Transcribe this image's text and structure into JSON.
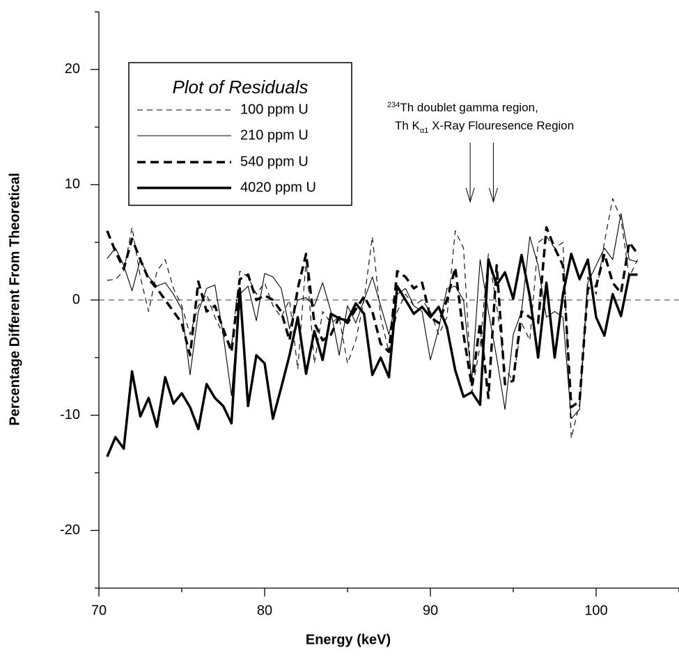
{
  "chart_data": {
    "type": "line",
    "ylabel": "Percentage Different From Theoretical",
    "xlabel": "Energy (keV)",
    "legend_title": "Plot of Residuals",
    "annotation": {
      "sup": "234",
      "line1": "Th doublet gamma region,",
      "line2a": "Th K",
      "sub": "α1",
      "line2b": " X-Ray Flouresence Region",
      "arrow_x": [
        92.4,
        93.8
      ]
    },
    "xlim": [
      70,
      105
    ],
    "ylim": [
      -25,
      25
    ],
    "xticks": [
      70,
      80,
      90,
      100
    ],
    "xminorticks": [
      75,
      85,
      95,
      105
    ],
    "yticks": [
      -20,
      -10,
      0,
      10,
      20
    ],
    "yminorticks": [
      -25,
      -15,
      -5,
      5,
      15,
      25
    ],
    "zero_line": true,
    "x": [
      70.5,
      71,
      71.5,
      72,
      72.5,
      73,
      73.5,
      74,
      74.5,
      75,
      75.5,
      76,
      76.5,
      77,
      77.5,
      78,
      78.5,
      79,
      79.5,
      80,
      80.5,
      81,
      81.5,
      82,
      82.5,
      83,
      83.5,
      84,
      84.5,
      85,
      85.5,
      86,
      86.5,
      87,
      87.5,
      88,
      88.5,
      89,
      89.5,
      90,
      90.5,
      91,
      91.5,
      92,
      92.5,
      93,
      93.5,
      94,
      94.5,
      95,
      95.5,
      96,
      96.5,
      97,
      97.5,
      98,
      98.5,
      99,
      99.5,
      100,
      100.5,
      101,
      101.5,
      102,
      102.5
    ],
    "series": [
      {
        "name": "100 ppm U",
        "color": "#000000",
        "dash": "dashed",
        "width": "thin",
        "values": [
          1.7,
          1.8,
          2.5,
          6.3,
          2.0,
          -1.0,
          2.5,
          3.5,
          1.0,
          -0.5,
          -3.0,
          -0.5,
          0.5,
          -1.5,
          -3.0,
          -4.0,
          2.5,
          2.0,
          0.5,
          1.5,
          -0.5,
          -1.5,
          0.0,
          -6.0,
          3.5,
          -5.5,
          -1.0,
          -2.0,
          -1.5,
          -5.5,
          -3.5,
          0.0,
          5.5,
          -1.5,
          -4.5,
          -1.0,
          0.5,
          -0.5,
          0.0,
          -1.0,
          -3.0,
          -1.5,
          6.0,
          4.5,
          -8.0,
          -4.0,
          4.0,
          -0.5,
          -6.0,
          -7.0,
          -2.0,
          -3.5,
          5.0,
          5.5,
          4.5,
          5.0,
          -12.0,
          -9.0,
          2.0,
          0.5,
          5.0,
          8.8,
          7.0,
          2.0,
          3.5
        ]
      },
      {
        "name": "210 ppm U",
        "color": "#000000",
        "dash": "solid",
        "width": "thin",
        "values": [
          3.6,
          4.5,
          3.0,
          0.8,
          3.5,
          2.0,
          1.2,
          1.5,
          0.5,
          -0.8,
          -6.5,
          -1.0,
          1.0,
          1.3,
          -3.0,
          -8.3,
          0.5,
          1.2,
          -1.8,
          2.3,
          2.0,
          1.0,
          -2.5,
          0.0,
          0.2,
          -0.5,
          1.5,
          -1.0,
          -4.8,
          -0.5,
          -2.0,
          0.0,
          2.0,
          -0.5,
          -3.0,
          0.5,
          1.0,
          -0.5,
          -1.0,
          -5.2,
          -2.5,
          1.0,
          1.2,
          0.0,
          -7.0,
          3.5,
          -1.0,
          -5.0,
          -9.5,
          -3.0,
          -1.0,
          5.5,
          3.0,
          -1.5,
          -1.0,
          -1.5,
          -10.3,
          -9.5,
          1.5,
          3.0,
          4.5,
          3.5,
          7.5,
          3.5,
          3.3
        ]
      },
      {
        "name": "540 ppm U",
        "color": "#000000",
        "dash": "dashed",
        "width": "thick",
        "values": [
          6.0,
          4.2,
          2.7,
          5.3,
          3.5,
          1.8,
          1.0,
          0.0,
          -1.0,
          -2.0,
          -4.8,
          1.6,
          -1.0,
          -0.5,
          -2.5,
          -4.5,
          1.8,
          2.2,
          0.0,
          0.4,
          0.0,
          -1.0,
          -3.5,
          1.0,
          4.0,
          -2.0,
          -3.5,
          -3.0,
          -1.5,
          -2.0,
          -0.8,
          0.3,
          -1.0,
          -3.8,
          -4.5,
          2.5,
          2.0,
          1.0,
          1.5,
          -1.5,
          -2.0,
          0.0,
          2.8,
          -3.0,
          -7.5,
          -2.0,
          -8.5,
          3.0,
          -7.3,
          -7.0,
          -1.0,
          -1.5,
          -2.0,
          6.3,
          4.5,
          3.0,
          -9.3,
          -8.8,
          1.0,
          1.2,
          4.0,
          1.5,
          0.6,
          5.0,
          4.0
        ]
      },
      {
        "name": "4020 ppm U",
        "color": "#000000",
        "dash": "solid",
        "width": "thick",
        "values": [
          -13.6,
          -11.9,
          -12.9,
          -6.2,
          -10.1,
          -8.5,
          -11.0,
          -6.7,
          -9.0,
          -8.1,
          -9.3,
          -11.2,
          -7.3,
          -8.5,
          -9.2,
          -10.7,
          1.0,
          -9.2,
          -4.8,
          -5.5,
          -10.3,
          -7.6,
          -4.8,
          -1.5,
          -6.4,
          -2.7,
          -5.2,
          -1.2,
          -1.6,
          -1.8,
          -0.3,
          -1.2,
          -6.5,
          -5.0,
          -6.7,
          1.2,
          0.0,
          -1.2,
          -0.6,
          -1.5,
          -0.6,
          -2.4,
          -6.1,
          -8.4,
          -8.0,
          -9.1,
          3.5,
          1.3,
          2.4,
          0.1,
          3.9,
          0.3,
          -5.0,
          1.5,
          -5.0,
          0.5,
          4.0,
          1.8,
          3.5,
          -1.5,
          -3.1,
          0.5,
          -1.4,
          2.2,
          2.2
        ]
      }
    ]
  }
}
